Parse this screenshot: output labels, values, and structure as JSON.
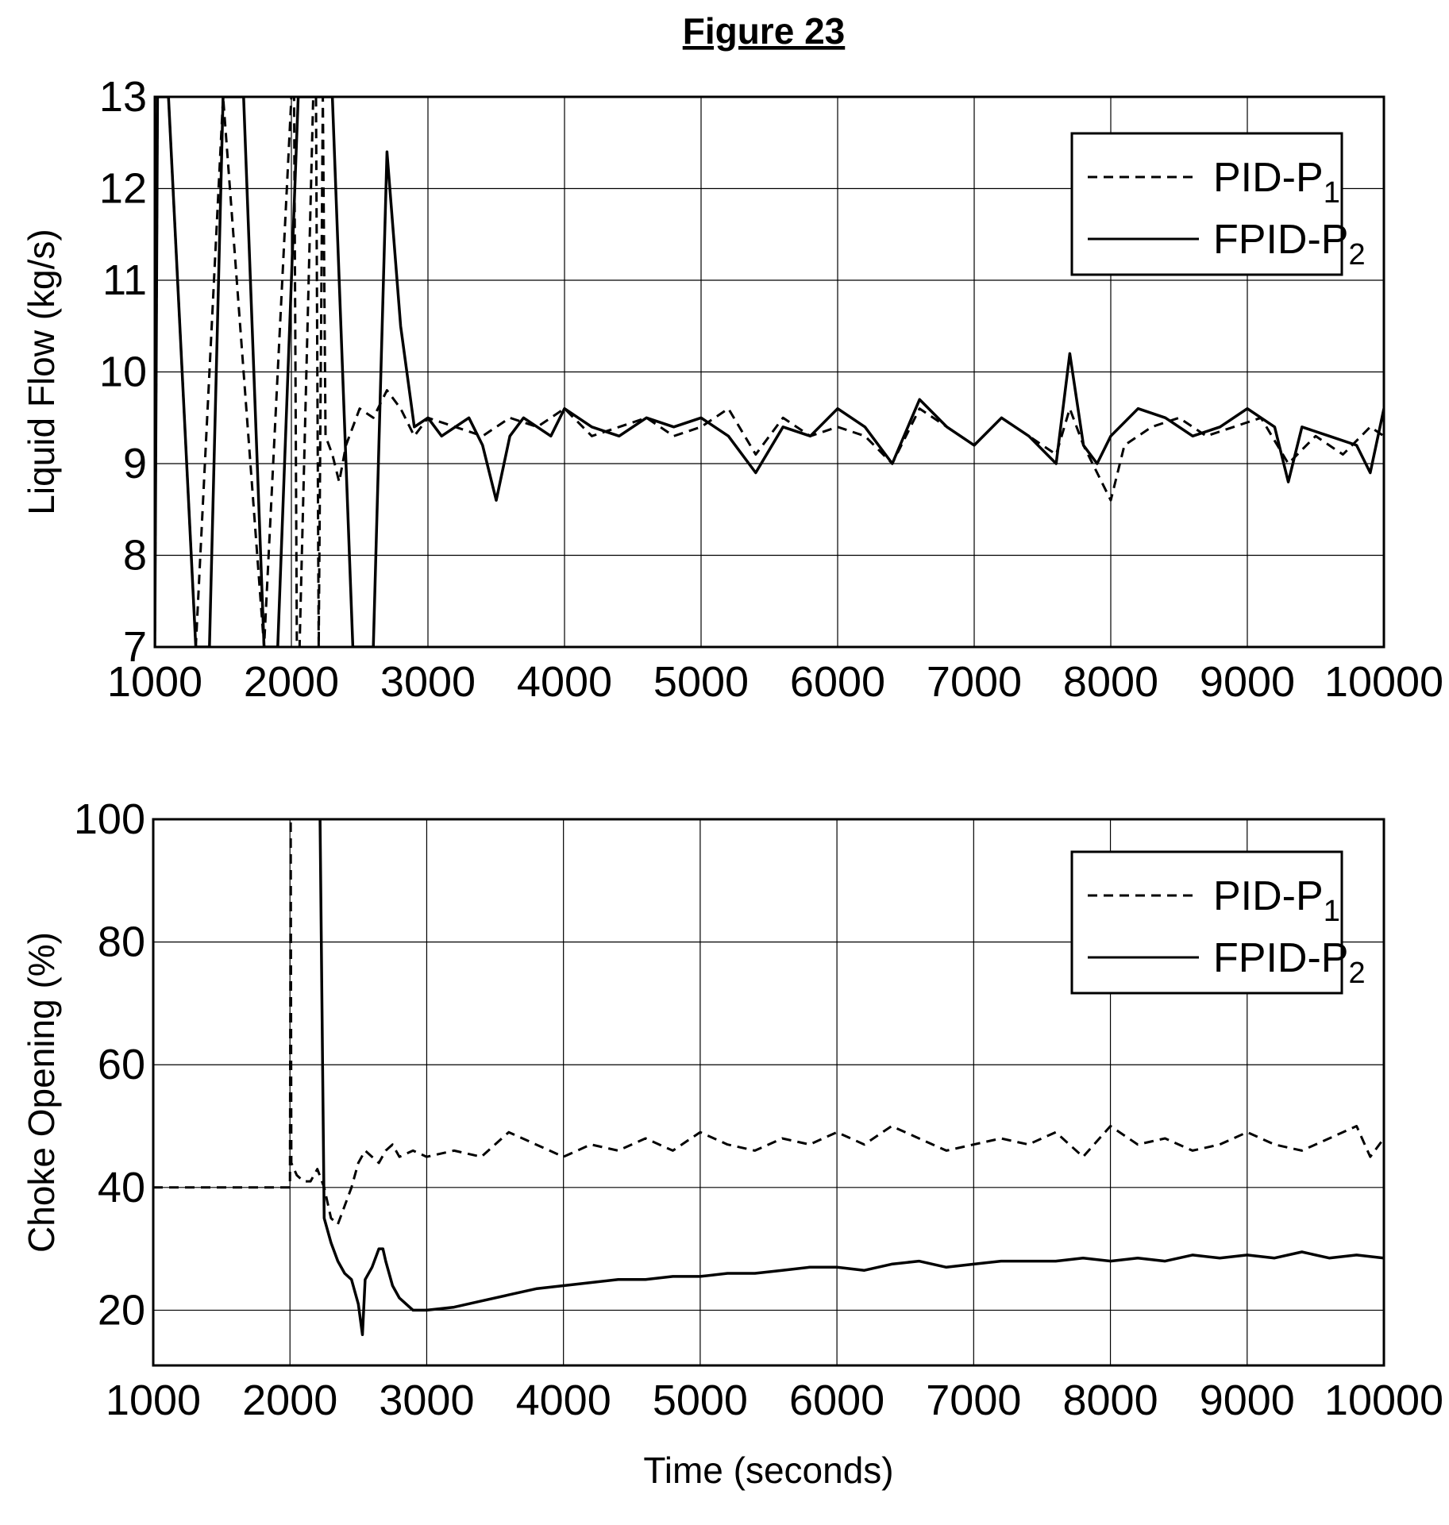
{
  "figure_title": "Figure 23",
  "chart_data": [
    {
      "type": "line",
      "title": "",
      "xlabel": "",
      "ylabel": "Liquid Flow (kg/s)",
      "xlim": [
        1000,
        10000
      ],
      "ylim": [
        7,
        13
      ],
      "xticks": [
        "1000",
        "2000",
        "3000",
        "4000",
        "5000",
        "6000",
        "7000",
        "8000",
        "9000",
        "10000"
      ],
      "yticks": [
        "7",
        "8",
        "9",
        "10",
        "11",
        "12",
        "13"
      ],
      "grid": true,
      "legend_position": "top-right",
      "series": [
        {
          "name": "PID-P1",
          "legend_main": "PID-P",
          "legend_sub": "1",
          "style": "dashed",
          "points": [
            [
              1000,
              7
            ],
            [
              1020,
              13
            ],
            [
              1100,
              13
            ],
            [
              1300,
              7
            ],
            [
              1500,
              13
            ],
            [
              1800,
              7
            ],
            [
              2000,
              13
            ],
            [
              2020,
              13
            ],
            [
              2040,
              7
            ],
            [
              2060,
              7
            ],
            [
              2160,
              13
            ],
            [
              2180,
              13
            ],
            [
              2200,
              7
            ],
            [
              2230,
              13
            ],
            [
              2250,
              9.3
            ],
            [
              2300,
              9.1
            ],
            [
              2350,
              8.8
            ],
            [
              2400,
              9.2
            ],
            [
              2450,
              9.4
            ],
            [
              2500,
              9.6
            ],
            [
              2600,
              9.5
            ],
            [
              2700,
              9.8
            ],
            [
              2800,
              9.6
            ],
            [
              2900,
              9.3
            ],
            [
              3000,
              9.5
            ],
            [
              3200,
              9.4
            ],
            [
              3400,
              9.3
            ],
            [
              3600,
              9.5
            ],
            [
              3800,
              9.4
            ],
            [
              4000,
              9.6
            ],
            [
              4200,
              9.3
            ],
            [
              4400,
              9.4
            ],
            [
              4600,
              9.5
            ],
            [
              4800,
              9.3
            ],
            [
              5000,
              9.4
            ],
            [
              5200,
              9.6
            ],
            [
              5400,
              9.1
            ],
            [
              5600,
              9.5
            ],
            [
              5800,
              9.3
            ],
            [
              6000,
              9.4
            ],
            [
              6200,
              9.3
            ],
            [
              6400,
              9.0
            ],
            [
              6600,
              9.6
            ],
            [
              6800,
              9.4
            ],
            [
              7000,
              9.2
            ],
            [
              7200,
              9.5
            ],
            [
              7400,
              9.3
            ],
            [
              7600,
              9.1
            ],
            [
              7700,
              9.6
            ],
            [
              7800,
              9.2
            ],
            [
              7900,
              8.9
            ],
            [
              8000,
              8.6
            ],
            [
              8100,
              9.2
            ],
            [
              8300,
              9.4
            ],
            [
              8500,
              9.5
            ],
            [
              8700,
              9.3
            ],
            [
              8900,
              9.4
            ],
            [
              9100,
              9.5
            ],
            [
              9300,
              9.0
            ],
            [
              9500,
              9.3
            ],
            [
              9700,
              9.1
            ],
            [
              9900,
              9.4
            ],
            [
              10000,
              9.3
            ]
          ]
        },
        {
          "name": "FPID-P2",
          "legend_main": "FPID-P",
          "legend_sub": "2",
          "style": "solid",
          "points": [
            [
              1000,
              7
            ],
            [
              1020,
              13
            ],
            [
              1100,
              13
            ],
            [
              1300,
              7
            ],
            [
              1400,
              7
            ],
            [
              1500,
              13
            ],
            [
              1650,
              13
            ],
            [
              1800,
              7
            ],
            [
              1900,
              7
            ],
            [
              2050,
              13
            ],
            [
              2150,
              13
            ],
            [
              2300,
              13
            ],
            [
              2450,
              7
            ],
            [
              2600,
              7
            ],
            [
              2700,
              12.4
            ],
            [
              2800,
              10.5
            ],
            [
              2900,
              9.4
            ],
            [
              3000,
              9.5
            ],
            [
              3100,
              9.3
            ],
            [
              3200,
              9.4
            ],
            [
              3300,
              9.5
            ],
            [
              3400,
              9.2
            ],
            [
              3500,
              8.6
            ],
            [
              3600,
              9.3
            ],
            [
              3700,
              9.5
            ],
            [
              3800,
              9.4
            ],
            [
              3900,
              9.3
            ],
            [
              4000,
              9.6
            ],
            [
              4200,
              9.4
            ],
            [
              4400,
              9.3
            ],
            [
              4600,
              9.5
            ],
            [
              4800,
              9.4
            ],
            [
              5000,
              9.5
            ],
            [
              5200,
              9.3
            ],
            [
              5400,
              8.9
            ],
            [
              5600,
              9.4
            ],
            [
              5800,
              9.3
            ],
            [
              6000,
              9.6
            ],
            [
              6200,
              9.4
            ],
            [
              6400,
              9.0
            ],
            [
              6600,
              9.7
            ],
            [
              6800,
              9.4
            ],
            [
              7000,
              9.2
            ],
            [
              7200,
              9.5
            ],
            [
              7400,
              9.3
            ],
            [
              7600,
              9.0
            ],
            [
              7700,
              10.2
            ],
            [
              7800,
              9.2
            ],
            [
              7900,
              9.0
            ],
            [
              8000,
              9.3
            ],
            [
              8200,
              9.6
            ],
            [
              8400,
              9.5
            ],
            [
              8600,
              9.3
            ],
            [
              8800,
              9.4
            ],
            [
              9000,
              9.6
            ],
            [
              9200,
              9.4
            ],
            [
              9300,
              8.8
            ],
            [
              9400,
              9.4
            ],
            [
              9600,
              9.3
            ],
            [
              9800,
              9.2
            ],
            [
              9900,
              8.9
            ],
            [
              10000,
              9.6
            ]
          ]
        }
      ]
    },
    {
      "type": "line",
      "title": "",
      "xlabel": "Time (seconds)",
      "ylabel": "Choke Opening (%)",
      "xlim": [
        1000,
        10000
      ],
      "ylim": [
        11,
        100
      ],
      "xticks": [
        "1000",
        "2000",
        "3000",
        "4000",
        "5000",
        "6000",
        "7000",
        "8000",
        "9000",
        "10000"
      ],
      "yticks": [
        "20",
        "40",
        "60",
        "80",
        "100"
      ],
      "grid": true,
      "legend_position": "top-right",
      "series": [
        {
          "name": "PID-P1",
          "legend_main": "PID-P",
          "legend_sub": "1",
          "style": "dashed",
          "points": [
            [
              1000,
              40
            ],
            [
              2000,
              40
            ],
            [
              2005,
              100
            ],
            [
              2010,
              44
            ],
            [
              2050,
              42
            ],
            [
              2100,
              41
            ],
            [
              2150,
              41
            ],
            [
              2200,
              43
            ],
            [
              2250,
              40
            ],
            [
              2300,
              35
            ],
            [
              2350,
              34
            ],
            [
              2400,
              37
            ],
            [
              2450,
              40
            ],
            [
              2500,
              44
            ],
            [
              2550,
              46
            ],
            [
              2600,
              45
            ],
            [
              2650,
              44
            ],
            [
              2700,
              46
            ],
            [
              2750,
              47
            ],
            [
              2800,
              45
            ],
            [
              2900,
              46
            ],
            [
              3000,
              45
            ],
            [
              3200,
              46
            ],
            [
              3400,
              45
            ],
            [
              3600,
              49
            ],
            [
              3800,
              47
            ],
            [
              4000,
              45
            ],
            [
              4200,
              47
            ],
            [
              4400,
              46
            ],
            [
              4600,
              48
            ],
            [
              4800,
              46
            ],
            [
              5000,
              49
            ],
            [
              5200,
              47
            ],
            [
              5400,
              46
            ],
            [
              5600,
              48
            ],
            [
              5800,
              47
            ],
            [
              6000,
              49
            ],
            [
              6200,
              47
            ],
            [
              6400,
              50
            ],
            [
              6600,
              48
            ],
            [
              6800,
              46
            ],
            [
              7000,
              47
            ],
            [
              7200,
              48
            ],
            [
              7400,
              47
            ],
            [
              7600,
              49
            ],
            [
              7800,
              45
            ],
            [
              8000,
              50
            ],
            [
              8200,
              47
            ],
            [
              8400,
              48
            ],
            [
              8600,
              46
            ],
            [
              8800,
              47
            ],
            [
              9000,
              49
            ],
            [
              9200,
              47
            ],
            [
              9400,
              46
            ],
            [
              9600,
              48
            ],
            [
              9800,
              50
            ],
            [
              9900,
              45
            ],
            [
              10000,
              48
            ]
          ]
        },
        {
          "name": "FPID-P2",
          "legend_main": "FPID-P",
          "legend_sub": "2",
          "style": "solid",
          "points": [
            [
              2220,
              100
            ],
            [
              2250,
              35
            ],
            [
              2300,
              31
            ],
            [
              2350,
              28
            ],
            [
              2400,
              26
            ],
            [
              2450,
              25
            ],
            [
              2500,
              21
            ],
            [
              2530,
              16
            ],
            [
              2550,
              25
            ],
            [
              2600,
              27
            ],
            [
              2650,
              30
            ],
            [
              2680,
              30
            ],
            [
              2700,
              28
            ],
            [
              2750,
              24
            ],
            [
              2800,
              22
            ],
            [
              2900,
              20
            ],
            [
              3000,
              20
            ],
            [
              3200,
              20.5
            ],
            [
              3400,
              21.5
            ],
            [
              3600,
              22.5
            ],
            [
              3800,
              23.5
            ],
            [
              4000,
              24
            ],
            [
              4200,
              24.5
            ],
            [
              4400,
              25
            ],
            [
              4600,
              25
            ],
            [
              4800,
              25.5
            ],
            [
              5000,
              25.5
            ],
            [
              5200,
              26
            ],
            [
              5400,
              26
            ],
            [
              5600,
              26.5
            ],
            [
              5800,
              27
            ],
            [
              6000,
              27
            ],
            [
              6200,
              26.5
            ],
            [
              6400,
              27.5
            ],
            [
              6600,
              28
            ],
            [
              6800,
              27
            ],
            [
              7000,
              27.5
            ],
            [
              7200,
              28
            ],
            [
              7400,
              28
            ],
            [
              7600,
              28
            ],
            [
              7800,
              28.5
            ],
            [
              8000,
              28
            ],
            [
              8200,
              28.5
            ],
            [
              8400,
              28
            ],
            [
              8600,
              29
            ],
            [
              8800,
              28.5
            ],
            [
              9000,
              29
            ],
            [
              9200,
              28.5
            ],
            [
              9400,
              29.5
            ],
            [
              9600,
              28.5
            ],
            [
              9800,
              29
            ],
            [
              10000,
              28.5
            ]
          ]
        }
      ]
    }
  ]
}
